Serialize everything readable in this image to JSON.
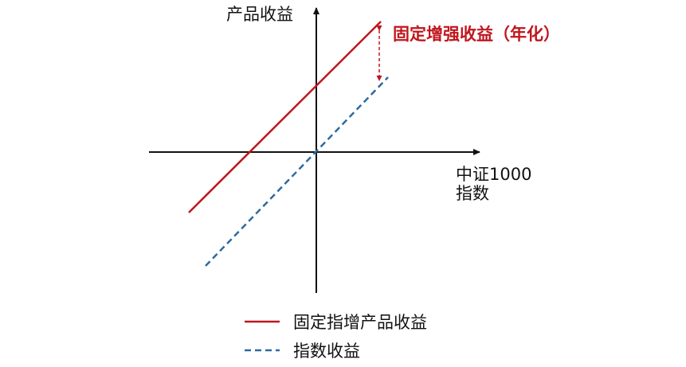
{
  "axes": {
    "y_label": "产品收益",
    "x_label_line1": "中证1000",
    "x_label_line2": "指数"
  },
  "annotation": {
    "text": "固定增强收益（年化）"
  },
  "legend": {
    "items": [
      {
        "label": "固定指增产品收益",
        "style": "solid",
        "color": "#c0161d"
      },
      {
        "label": "指数收益",
        "style": "dashed",
        "color": "#2e6aa0"
      }
    ]
  },
  "colors": {
    "axis": "#111111",
    "red_line": "#c0161d",
    "blue_line": "#2e6aa0",
    "annotation_arrow": "#c0161d"
  }
}
